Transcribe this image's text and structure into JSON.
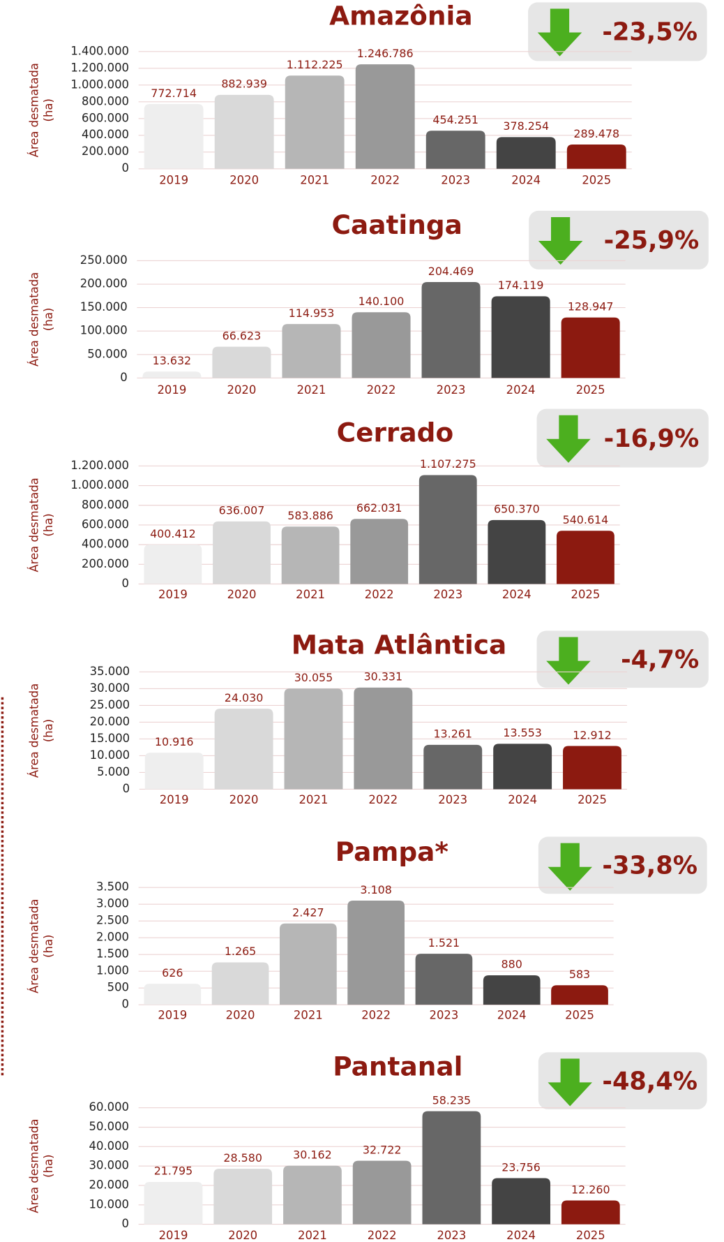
{
  "chart_data": [
    {
      "type": "bar",
      "title": "Amazônia",
      "annotation": "-23,5%",
      "ylabel": [
        "Área desmatada",
        "(ha)"
      ],
      "categories": [
        "2019",
        "2020",
        "2021",
        "2022",
        "2023",
        "2024",
        "2025"
      ],
      "values": [
        772714,
        882939,
        1112225,
        1246786,
        454251,
        378254,
        289478
      ],
      "value_labels": [
        "772.714",
        "882.939",
        "1.112.225",
        "1.246.786",
        "454.251",
        "378.254",
        "289.478"
      ],
      "colors": [
        "#eeeeee",
        "#d9d9d9",
        "#b6b6b6",
        "#999999",
        "#676767",
        "#444444",
        "#8c1a10"
      ],
      "ylim": [
        0,
        1400000
      ],
      "yticks": [
        0,
        {
          "value": 200000,
          "label": "200.000"
        },
        {
          "value": 400000,
          "label": "400.000"
        },
        {
          "value": 600000,
          "label": "600.000"
        },
        {
          "value": 800000,
          "label": "800.000"
        },
        {
          "value": 1000000,
          "label": "1.000.000"
        },
        {
          "value": 1200000,
          "label": "1.200.000"
        },
        {
          "value": 1400000,
          "label": "1.400.000"
        }
      ],
      "grid": true
    },
    {
      "type": "bar",
      "title": "Caatinga",
      "annotation": "-25,9%",
      "ylabel": [
        "Área desmatada",
        "(ha)"
      ],
      "categories": [
        "2019",
        "2020",
        "2021",
        "2022",
        "2023",
        "2024",
        "2025"
      ],
      "values": [
        13632,
        66623,
        114953,
        140100,
        204469,
        174119,
        128947
      ],
      "value_labels": [
        "13.632",
        "66.623",
        "114.953",
        "140.100",
        "204.469",
        "174.119",
        "128.947"
      ],
      "colors": [
        "#eeeeee",
        "#d9d9d9",
        "#b6b6b6",
        "#999999",
        "#676767",
        "#444444",
        "#8c1a10"
      ],
      "ylim": [
        0,
        250000
      ],
      "yticks": [
        0,
        {
          "value": 50000,
          "label": "50.000"
        },
        {
          "value": 100000,
          "label": "100.000"
        },
        {
          "value": 150000,
          "label": "150.000"
        },
        {
          "value": 200000,
          "label": "200.000"
        },
        {
          "value": 250000,
          "label": "250.000"
        }
      ],
      "grid": true
    },
    {
      "type": "bar",
      "title": "Cerrado",
      "annotation": "-16,9%",
      "ylabel": [
        "Área desmatada",
        "(ha)"
      ],
      "categories": [
        "2019",
        "2020",
        "2021",
        "2022",
        "2023",
        "2024",
        "2025"
      ],
      "values": [
        400412,
        636007,
        583886,
        662031,
        1107275,
        650370,
        540614
      ],
      "value_labels": [
        "400.412",
        "636.007",
        "583.886",
        "662.031",
        "1.107.275",
        "650.370",
        "540.614"
      ],
      "colors": [
        "#eeeeee",
        "#d9d9d9",
        "#b6b6b6",
        "#999999",
        "#676767",
        "#444444",
        "#8c1a10"
      ],
      "ylim": [
        0,
        1200000
      ],
      "yticks": [
        0,
        {
          "value": 200000,
          "label": "200.000"
        },
        {
          "value": 400000,
          "label": "400.000"
        },
        {
          "value": 600000,
          "label": "600.000"
        },
        {
          "value": 800000,
          "label": "800.000"
        },
        {
          "value": 1000000,
          "label": "1.000.000"
        },
        {
          "value": 1200000,
          "label": "1.200.000"
        }
      ],
      "grid": true
    },
    {
      "type": "bar",
      "title": "Mata Atlântica",
      "annotation": "-4,7%",
      "ylabel": [
        "Área desmatada",
        "(ha)"
      ],
      "categories": [
        "2019",
        "2020",
        "2021",
        "2022",
        "2023",
        "2024",
        "2025"
      ],
      "values": [
        10916,
        24030,
        30055,
        30331,
        13261,
        13553,
        12912
      ],
      "value_labels": [
        "10.916",
        "24.030",
        "30.055",
        "30.331",
        "13.261",
        "13.553",
        "12.912"
      ],
      "colors": [
        "#eeeeee",
        "#d9d9d9",
        "#b6b6b6",
        "#999999",
        "#676767",
        "#444444",
        "#8c1a10"
      ],
      "ylim": [
        0,
        35000
      ],
      "yticks": [
        0,
        {
          "value": 5000,
          "label": "5.000"
        },
        {
          "value": 10000,
          "label": "10.000"
        },
        {
          "value": 15000,
          "label": "15.000"
        },
        {
          "value": 20000,
          "label": "20.000"
        },
        {
          "value": 25000,
          "label": "25.000"
        },
        {
          "value": 30000,
          "label": "30.000"
        },
        {
          "value": 35000,
          "label": "35.000"
        }
      ],
      "grid": true
    },
    {
      "type": "bar",
      "title": "Pampa*",
      "annotation": "-33,8%",
      "ylabel": [
        "Área desmatada",
        "(ha)"
      ],
      "categories": [
        "2019",
        "2020",
        "2021",
        "2022",
        "2023",
        "2024",
        "2025"
      ],
      "values": [
        626,
        1265,
        2427,
        3108,
        1521,
        880,
        583
      ],
      "value_labels": [
        "626",
        "1.265",
        "2.427",
        "3.108",
        "1.521",
        "880",
        "583"
      ],
      "colors": [
        "#eeeeee",
        "#d9d9d9",
        "#b6b6b6",
        "#999999",
        "#676767",
        "#444444",
        "#8c1a10"
      ],
      "ylim": [
        0,
        3500
      ],
      "yticks": [
        0,
        500,
        {
          "value": 1000,
          "label": "1.000"
        },
        {
          "value": 1500,
          "label": "1.500"
        },
        {
          "value": 2000,
          "label": "2.000"
        },
        {
          "value": 2500,
          "label": "2.500"
        },
        {
          "value": 3000,
          "label": "3.000"
        },
        {
          "value": 3500,
          "label": "3.500"
        }
      ],
      "grid": true
    },
    {
      "type": "bar",
      "title": "Pantanal",
      "annotation": "-48,4%",
      "ylabel": [
        "Área desmatada",
        "(ha)"
      ],
      "categories": [
        "2019",
        "2020",
        "2021",
        "2022",
        "2023",
        "2024",
        "2025"
      ],
      "values": [
        21795,
        28580,
        30162,
        32722,
        58235,
        23756,
        12260
      ],
      "value_labels": [
        "21.795",
        "28.580",
        "30.162",
        "32.722",
        "58.235",
        "23.756",
        "12.260"
      ],
      "colors": [
        "#eeeeee",
        "#d9d9d9",
        "#b6b6b6",
        "#999999",
        "#676767",
        "#444444",
        "#8c1a10"
      ],
      "ylim": [
        0,
        60000
      ],
      "yticks": [
        0,
        {
          "value": 10000,
          "label": "10.000"
        },
        {
          "value": 20000,
          "label": "20.000"
        },
        {
          "value": 30000,
          "label": "30.000"
        },
        {
          "value": 40000,
          "label": "40.000"
        },
        {
          "value": 50000,
          "label": "50.000"
        },
        {
          "value": 60000,
          "label": "60.000"
        }
      ],
      "grid": true
    }
  ]
}
